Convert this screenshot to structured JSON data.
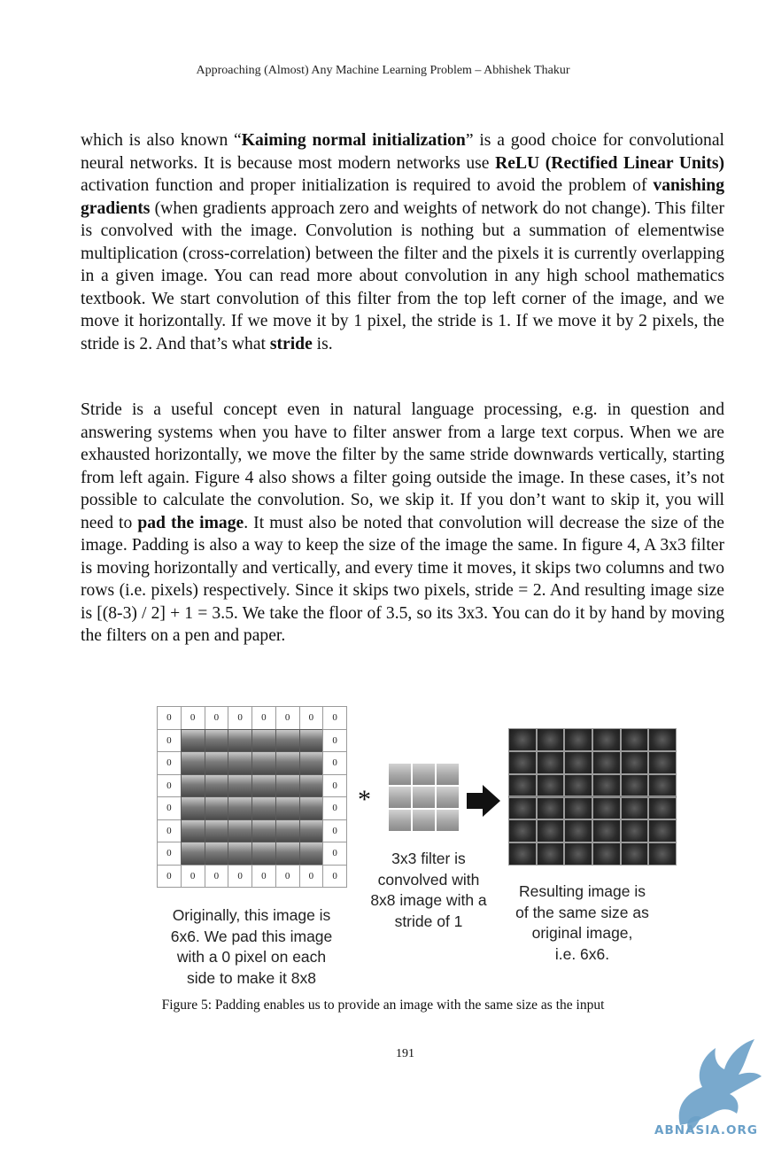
{
  "header": {
    "running_title": "Approaching (Almost) Any Machine Learning Problem – Abhishek Thakur"
  },
  "paragraph1": {
    "t1": "which is also known “",
    "b1": "Kaiming normal initialization",
    "t2": "” is a good choice for convolutional neural networks. It is because most modern networks use ",
    "b2": "ReLU (Rectified Linear Units)",
    "t3": " activation function and proper initialization is required to avoid the problem of ",
    "b3": "vanishing gradients",
    "t4": " (when gradients approach zero and weights of network do not change). This filter is convolved with the image. Convolution is nothing but a summation of elementwise multiplication (cross-correlation) between the filter and the pixels it is currently overlapping in a given image. You can read more about convolution in any high school mathematics textbook. We start convolution of this filter from the top left corner of the image, and we move it horizontally. If we move it by 1 pixel, the stride is 1. If we move it by 2 pixels, the stride is 2. And that’s what ",
    "b4": "stride",
    "t5": " is."
  },
  "paragraph2": {
    "t1": "Stride is a useful concept even in natural language processing, e.g. in question and answering systems when you have to filter answer from a large text corpus. When we are exhausted horizontally, we move the filter by the same stride downwards vertically, starting from left again. Figure 4 also shows a filter going outside the image. In these cases, it’s not possible to calculate the convolution. So, we skip it. If you don’t want to skip it, you will need to ",
    "b1": "pad the image",
    "t2": ". It must also be noted that convolution will decrease the size of the image. Padding is also a way to keep the size of the image the same. In figure 4, A 3x3 filter is moving horizontally and vertically, and every time it moves, it skips two columns and two rows (i.e. pixels) respectively. Since it skips two pixels, stride = 2. And resulting image size is [(8-3) / 2] + 1 = 3.5. We take the floor of 3.5, so its 3x3. You can do it by hand by moving the filters on a pen and paper."
  },
  "figure": {
    "padding_value": "0",
    "operator": "*",
    "left_label": "Originally, this image is\n6x6. We pad this image\nwith a 0 pixel on each\nside to make it 8x8",
    "middle_label": "3x3 filter is\nconvolved with\n8x8 image with a\nstride of 1",
    "right_label": "Resulting image is\nof the same size as\noriginal image,\ni.e. 6x6.",
    "caption": "Figure 5: Padding enables us to provide an image with the same size as the input"
  },
  "footer": {
    "page_number": "191",
    "watermark_text": "ABNASIA.ORG"
  }
}
